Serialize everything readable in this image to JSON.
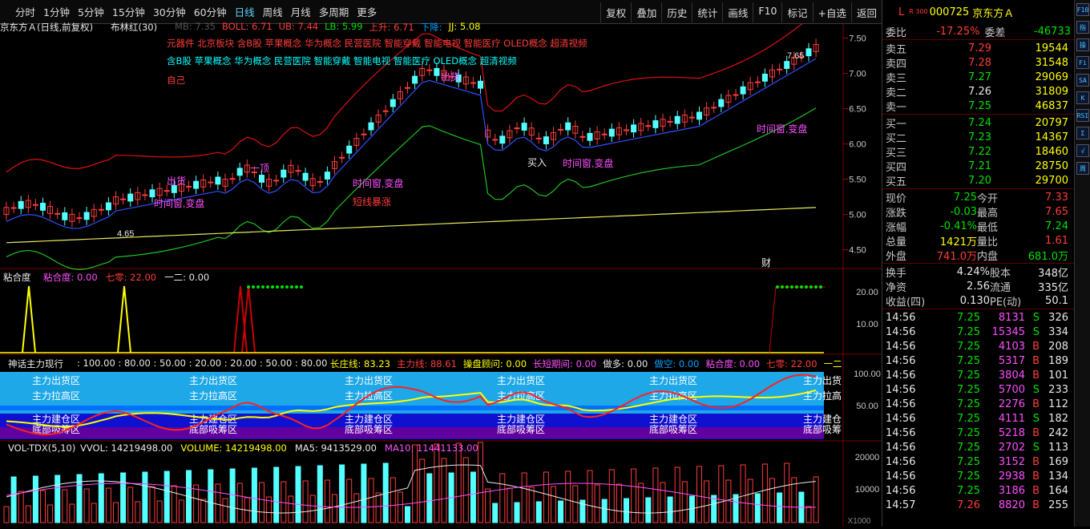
{
  "periods": [
    "分时",
    "1分钟",
    "5分钟",
    "15分钟",
    "30分钟",
    "60分钟",
    "日线",
    "周线",
    "月线",
    "多周期",
    "更多"
  ],
  "active_period": "日线",
  "toolbar": [
    "复权",
    "叠加",
    "历史",
    "统计",
    "画线",
    "F10",
    "标记",
    "+自选",
    "返回"
  ],
  "main": {
    "title": "京东方Ａ(日线,前复权)",
    "indicator": "布林红(30)",
    "boll_labels": [
      "MB: 7.35",
      "BOLL: 6.71",
      "UB: 7.44",
      "LB: 5.99",
      "上升: 6.71",
      "下降:",
      "JJ: 5.08"
    ],
    "concepts_red": "元器件 北京板块 含B股 苹果概念 华为概念 民营医院 智能穿戴 智能电视 智能医疗 OLED概念 超清视频",
    "concepts_cyan": "含B股 苹果概念 华为概念 民营医院 智能穿戴 智能电视 智能医疗 OLED概念 超清视频",
    "self_label": "自己",
    "price_axis": [
      "7.50",
      "7.00",
      "6.50",
      "6.00",
      "5.50",
      "5.00",
      "4.50"
    ],
    "high_mark": "7.65",
    "low_mark": "4.65",
    "annotations": [
      "出货",
      "一顶",
      "时间窗,变盘",
      "短线暴涨",
      "出货",
      "时间窗,变盘",
      "买入",
      "时间窗,变盘",
      "时间窗,变盘"
    ],
    "cai_label": "财"
  },
  "panel2": {
    "name": "粘合度",
    "values": [
      "粘合度: 0.00",
      "七零: 22.00",
      "一二: 0.00"
    ],
    "axis": [
      "20.00",
      "10.00"
    ]
  },
  "panel3": {
    "name": "神话主力现行",
    "scale": ": 100.00 : 80.00 : 50.00 : 20.00 : 20.00 : 50.00 : 80.00",
    "values": [
      "长庄线: 83.23",
      "主力线: 88.61",
      "操盘顾问: 0.00",
      "长短期间: 0.00",
      "做多: 0.00",
      "做空: 0.00",
      "粘合度: 0.00",
      "七零: 22.00",
      "一二"
    ],
    "zones": [
      "主力出货区",
      "主力拉高区",
      "主力建仓区",
      "底部吸筹区"
    ],
    "axis": [
      "100.00",
      "50.00"
    ],
    "right_labels": [
      "主力出货",
      "主力拉高",
      "主力建仓",
      "底部吸筹"
    ]
  },
  "panel4": {
    "name": "VOL-TDX(5,10)",
    "values": [
      "VVOL: 14219498.00",
      "VOLUME: 14219498.00",
      "MA5: 9413529.00",
      "MA10: 11441133.00"
    ],
    "axis": [
      "20000",
      "10000"
    ],
    "unit": "X1000"
  },
  "quote": {
    "code": "000725",
    "name": "京东方Ａ",
    "badge": "R 300",
    "L": "L",
    "weibi": {
      "label": "委比",
      "value": "-17.25%",
      "label2": "委差",
      "value2": "-46733"
    },
    "asks": [
      [
        "卖五",
        "7.29",
        "19544"
      ],
      [
        "卖四",
        "7.28",
        "31548"
      ],
      [
        "卖三",
        "7.27",
        "29069"
      ],
      [
        "卖二",
        "7.26",
        "31809"
      ],
      [
        "卖一",
        "7.25",
        "46837"
      ]
    ],
    "bids": [
      [
        "买一",
        "7.24",
        "20797"
      ],
      [
        "买二",
        "7.23",
        "14367"
      ],
      [
        "买三",
        "7.22",
        "18460"
      ],
      [
        "买四",
        "7.21",
        "28750"
      ],
      [
        "买五",
        "7.20",
        "29700"
      ]
    ],
    "stats": [
      [
        "现价",
        "7.25",
        "今开",
        "7.33"
      ],
      [
        "涨跌",
        "-0.03",
        "最高",
        "7.65"
      ],
      [
        "涨幅",
        "-0.41%",
        "最低",
        "7.24"
      ],
      [
        "总量",
        "1421万",
        "量比",
        "1.61"
      ],
      [
        "外盘",
        "741.0万",
        "内盘",
        "681.0万"
      ]
    ],
    "stats2": [
      [
        "换手",
        "4.24%",
        "股本",
        "348亿"
      ],
      [
        "净资",
        "2.56",
        "流通",
        "335亿"
      ],
      [
        "收益(四)",
        "0.130",
        "PE(动)",
        "50.1"
      ]
    ],
    "ticks": [
      [
        "14:56",
        "7.25",
        "8131",
        "S",
        "326"
      ],
      [
        "14:56",
        "7.25",
        "15345",
        "S",
        "334"
      ],
      [
        "14:56",
        "7.25",
        "4103",
        "B",
        "208"
      ],
      [
        "14:56",
        "7.25",
        "5317",
        "B",
        "189"
      ],
      [
        "14:56",
        "7.25",
        "3804",
        "B",
        "101"
      ],
      [
        "14:56",
        "7.25",
        "5700",
        "S",
        "233"
      ],
      [
        "14:56",
        "7.25",
        "2276",
        "B",
        "112"
      ],
      [
        "14:56",
        "7.25",
        "4111",
        "S",
        "182"
      ],
      [
        "14:56",
        "7.25",
        "5218",
        "B",
        "242"
      ],
      [
        "14:56",
        "7.25",
        "2702",
        "S",
        "113"
      ],
      [
        "14:56",
        "7.25",
        "3152",
        "B",
        "169"
      ],
      [
        "14:56",
        "7.25",
        "2938",
        "B",
        "134"
      ],
      [
        "14:56",
        "7.25",
        "3186",
        "B",
        "164"
      ],
      [
        "14:57",
        "7.26",
        "8820",
        "B",
        "255"
      ]
    ]
  },
  "right_tools": [
    "F10",
    "指",
    "操",
    "Fi",
    "SA",
    "K",
    "RSI",
    "Σ",
    "√",
    "周"
  ]
}
